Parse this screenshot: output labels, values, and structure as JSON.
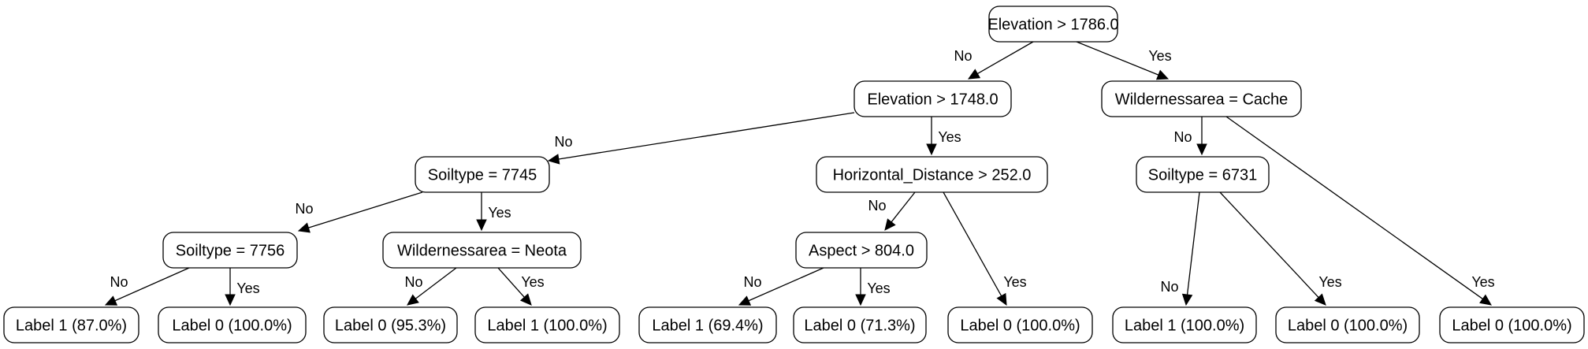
{
  "tree": {
    "nodes": {
      "n0": "Elevation > 1786.0",
      "n1": "Elevation > 1748.0",
      "n2": "Wildernessarea = Cache",
      "n3": "Soiltype = 7745",
      "n4": "Horizontal_Distance > 252.0",
      "n5": "Soiltype = 6731",
      "n6": "Soiltype = 7756",
      "n7": "Wildernessarea = Neota",
      "n8": "Aspect > 804.0",
      "l1": "Label 1 (87.0%)",
      "l2": "Label 0 (100.0%)",
      "l3": "Label 0 (95.3%)",
      "l4": "Label 1 (100.0%)",
      "l5": "Label 1 (69.4%)",
      "l6": "Label 0 (71.3%)",
      "l7": "Label 0 (100.0%)",
      "l8": "Label 1 (100.0%)",
      "l9": "Label 0 (100.0%)",
      "l10": "Label 0 (100.0%)"
    },
    "edges": [
      {
        "from": "n0",
        "to": "n1",
        "label": "No"
      },
      {
        "from": "n0",
        "to": "n2",
        "label": "Yes"
      },
      {
        "from": "n1",
        "to": "n3",
        "label": "No"
      },
      {
        "from": "n1",
        "to": "n4",
        "label": "Yes"
      },
      {
        "from": "n2",
        "to": "n5",
        "label": "No"
      },
      {
        "from": "n2",
        "to": "l10",
        "label": "Yes"
      },
      {
        "from": "n3",
        "to": "n6",
        "label": "No"
      },
      {
        "from": "n3",
        "to": "n7",
        "label": "Yes"
      },
      {
        "from": "n4",
        "to": "n8",
        "label": "No"
      },
      {
        "from": "n4",
        "to": "l7",
        "label": "Yes"
      },
      {
        "from": "n5",
        "to": "l8",
        "label": "No"
      },
      {
        "from": "n5",
        "to": "l9",
        "label": "Yes"
      },
      {
        "from": "n6",
        "to": "l1",
        "label": "No"
      },
      {
        "from": "n6",
        "to": "l2",
        "label": "Yes"
      },
      {
        "from": "n7",
        "to": "l3",
        "label": "No"
      },
      {
        "from": "n7",
        "to": "l4",
        "label": "Yes"
      },
      {
        "from": "n8",
        "to": "l5",
        "label": "No"
      },
      {
        "from": "n8",
        "to": "l6",
        "label": "Yes"
      }
    ]
  }
}
